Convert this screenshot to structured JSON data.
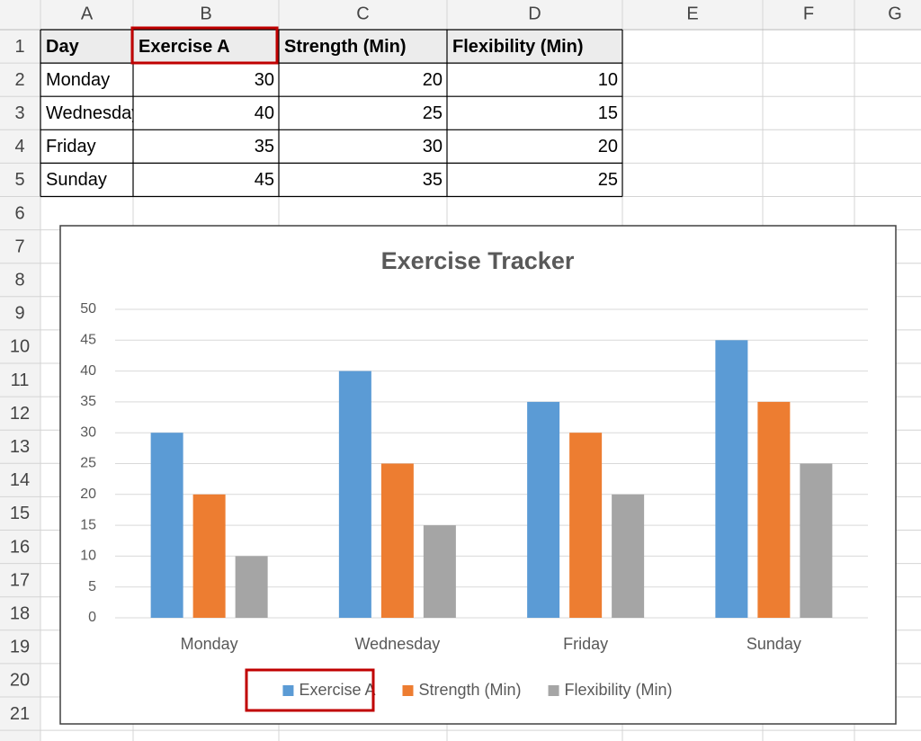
{
  "sheet": {
    "columns": [
      "A",
      "B",
      "C",
      "D",
      "E",
      "F",
      "G"
    ],
    "rows": [
      1,
      2,
      3,
      4,
      5,
      6,
      7,
      8,
      9,
      10,
      11,
      12,
      13,
      14,
      15,
      16,
      17,
      18,
      19,
      20,
      21
    ],
    "cells": [
      [
        "Day",
        "Exercise A",
        "Strength (Min)",
        "Flexibility (Min)"
      ],
      [
        "Monday",
        30,
        20,
        10
      ],
      [
        "Wednesday",
        40,
        25,
        15
      ],
      [
        "Friday",
        35,
        30,
        20
      ],
      [
        "Sunday",
        45,
        35,
        25
      ]
    ]
  },
  "chart_data": {
    "type": "bar",
    "title": "Exercise Tracker",
    "categories": [
      "Monday",
      "Wednesday",
      "Friday",
      "Sunday"
    ],
    "series": [
      {
        "name": "Exercise A",
        "color": "#5b9bd5",
        "values": [
          30,
          40,
          35,
          45
        ]
      },
      {
        "name": "Strength (Min)",
        "color": "#ed7d31",
        "values": [
          20,
          25,
          30,
          35
        ]
      },
      {
        "name": "Flexibility (Min)",
        "color": "#a5a5a5",
        "values": [
          10,
          15,
          20,
          25
        ]
      }
    ],
    "ylim": [
      0,
      50
    ],
    "yticks": [
      0,
      5,
      10,
      15,
      20,
      25,
      30,
      35,
      40,
      45,
      50
    ],
    "grid": true,
    "legend": "bottom"
  }
}
